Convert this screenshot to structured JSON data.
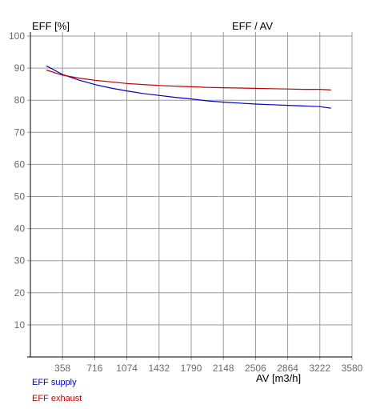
{
  "chart_data": {
    "type": "line",
    "title": "EFF / AV",
    "ylabel": "EFF [%]",
    "xlabel": "AV [m3/h]",
    "xlim": [
      0,
      3580
    ],
    "ylim": [
      0,
      100
    ],
    "x_ticks": [
      358,
      716,
      1074,
      1432,
      1790,
      2148,
      2506,
      2864,
      3222,
      3580
    ],
    "y_ticks": [
      10,
      20,
      30,
      40,
      50,
      60,
      70,
      80,
      90,
      100
    ],
    "grid": true,
    "legend_position": "bottom-left",
    "series": [
      {
        "name": "EFF supply",
        "color": "#0000c0",
        "x": [
          179,
          358,
          537,
          716,
          895,
          1074,
          1253,
          1432,
          1611,
          1790,
          1969,
          2148,
          2327,
          2506,
          2685,
          2864,
          3043,
          3222,
          3347
        ],
        "y": [
          90.7,
          88.0,
          86.3,
          84.9,
          83.8,
          82.9,
          82.1,
          81.5,
          80.9,
          80.4,
          79.8,
          79.4,
          79.1,
          78.8,
          78.6,
          78.4,
          78.2,
          78.0,
          77.5
        ]
      },
      {
        "name": "EFF exhaust",
        "color": "#c00000",
        "x": [
          179,
          358,
          537,
          716,
          895,
          1074,
          1253,
          1432,
          1611,
          1790,
          1969,
          2148,
          2327,
          2506,
          2685,
          2864,
          3043,
          3222,
          3347
        ],
        "y": [
          89.4,
          87.8,
          86.9,
          86.2,
          85.7,
          85.2,
          84.9,
          84.6,
          84.4,
          84.2,
          84.0,
          83.9,
          83.8,
          83.7,
          83.6,
          83.5,
          83.4,
          83.4,
          83.2
        ]
      }
    ]
  }
}
